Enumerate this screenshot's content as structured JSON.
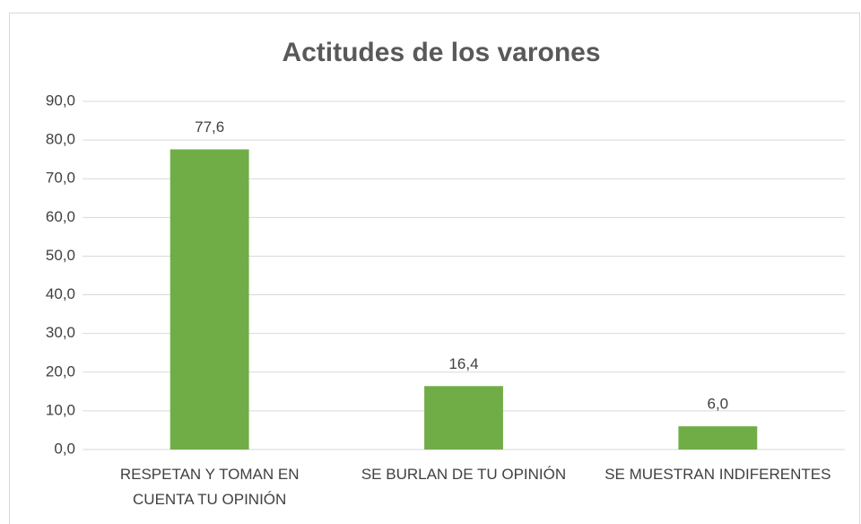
{
  "chart_data": {
    "type": "bar",
    "title": "Actitudes de los varones",
    "categories": [
      "RESPETAN Y TOMAN EN CUENTA TU OPINIÓN",
      "SE BURLAN DE TU OPINIÓN",
      "SE MUESTRAN INDIFERENTES"
    ],
    "values": [
      77.6,
      16.4,
      6.0
    ],
    "value_labels": [
      "77,6",
      "16,4",
      "6,0"
    ],
    "color": "#70ad47",
    "ylim": [
      0,
      90
    ],
    "yticks": [
      {
        "value": 0,
        "label": "0,0"
      },
      {
        "value": 10,
        "label": "10,0"
      },
      {
        "value": 20,
        "label": "20,0"
      },
      {
        "value": 30,
        "label": "30,0"
      },
      {
        "value": 40,
        "label": "40,0"
      },
      {
        "value": 50,
        "label": "50,0"
      },
      {
        "value": 60,
        "label": "60,0"
      },
      {
        "value": 70,
        "label": "70,0"
      },
      {
        "value": 80,
        "label": "80,0"
      },
      {
        "value": 90,
        "label": "90,0"
      }
    ],
    "grid": true
  }
}
